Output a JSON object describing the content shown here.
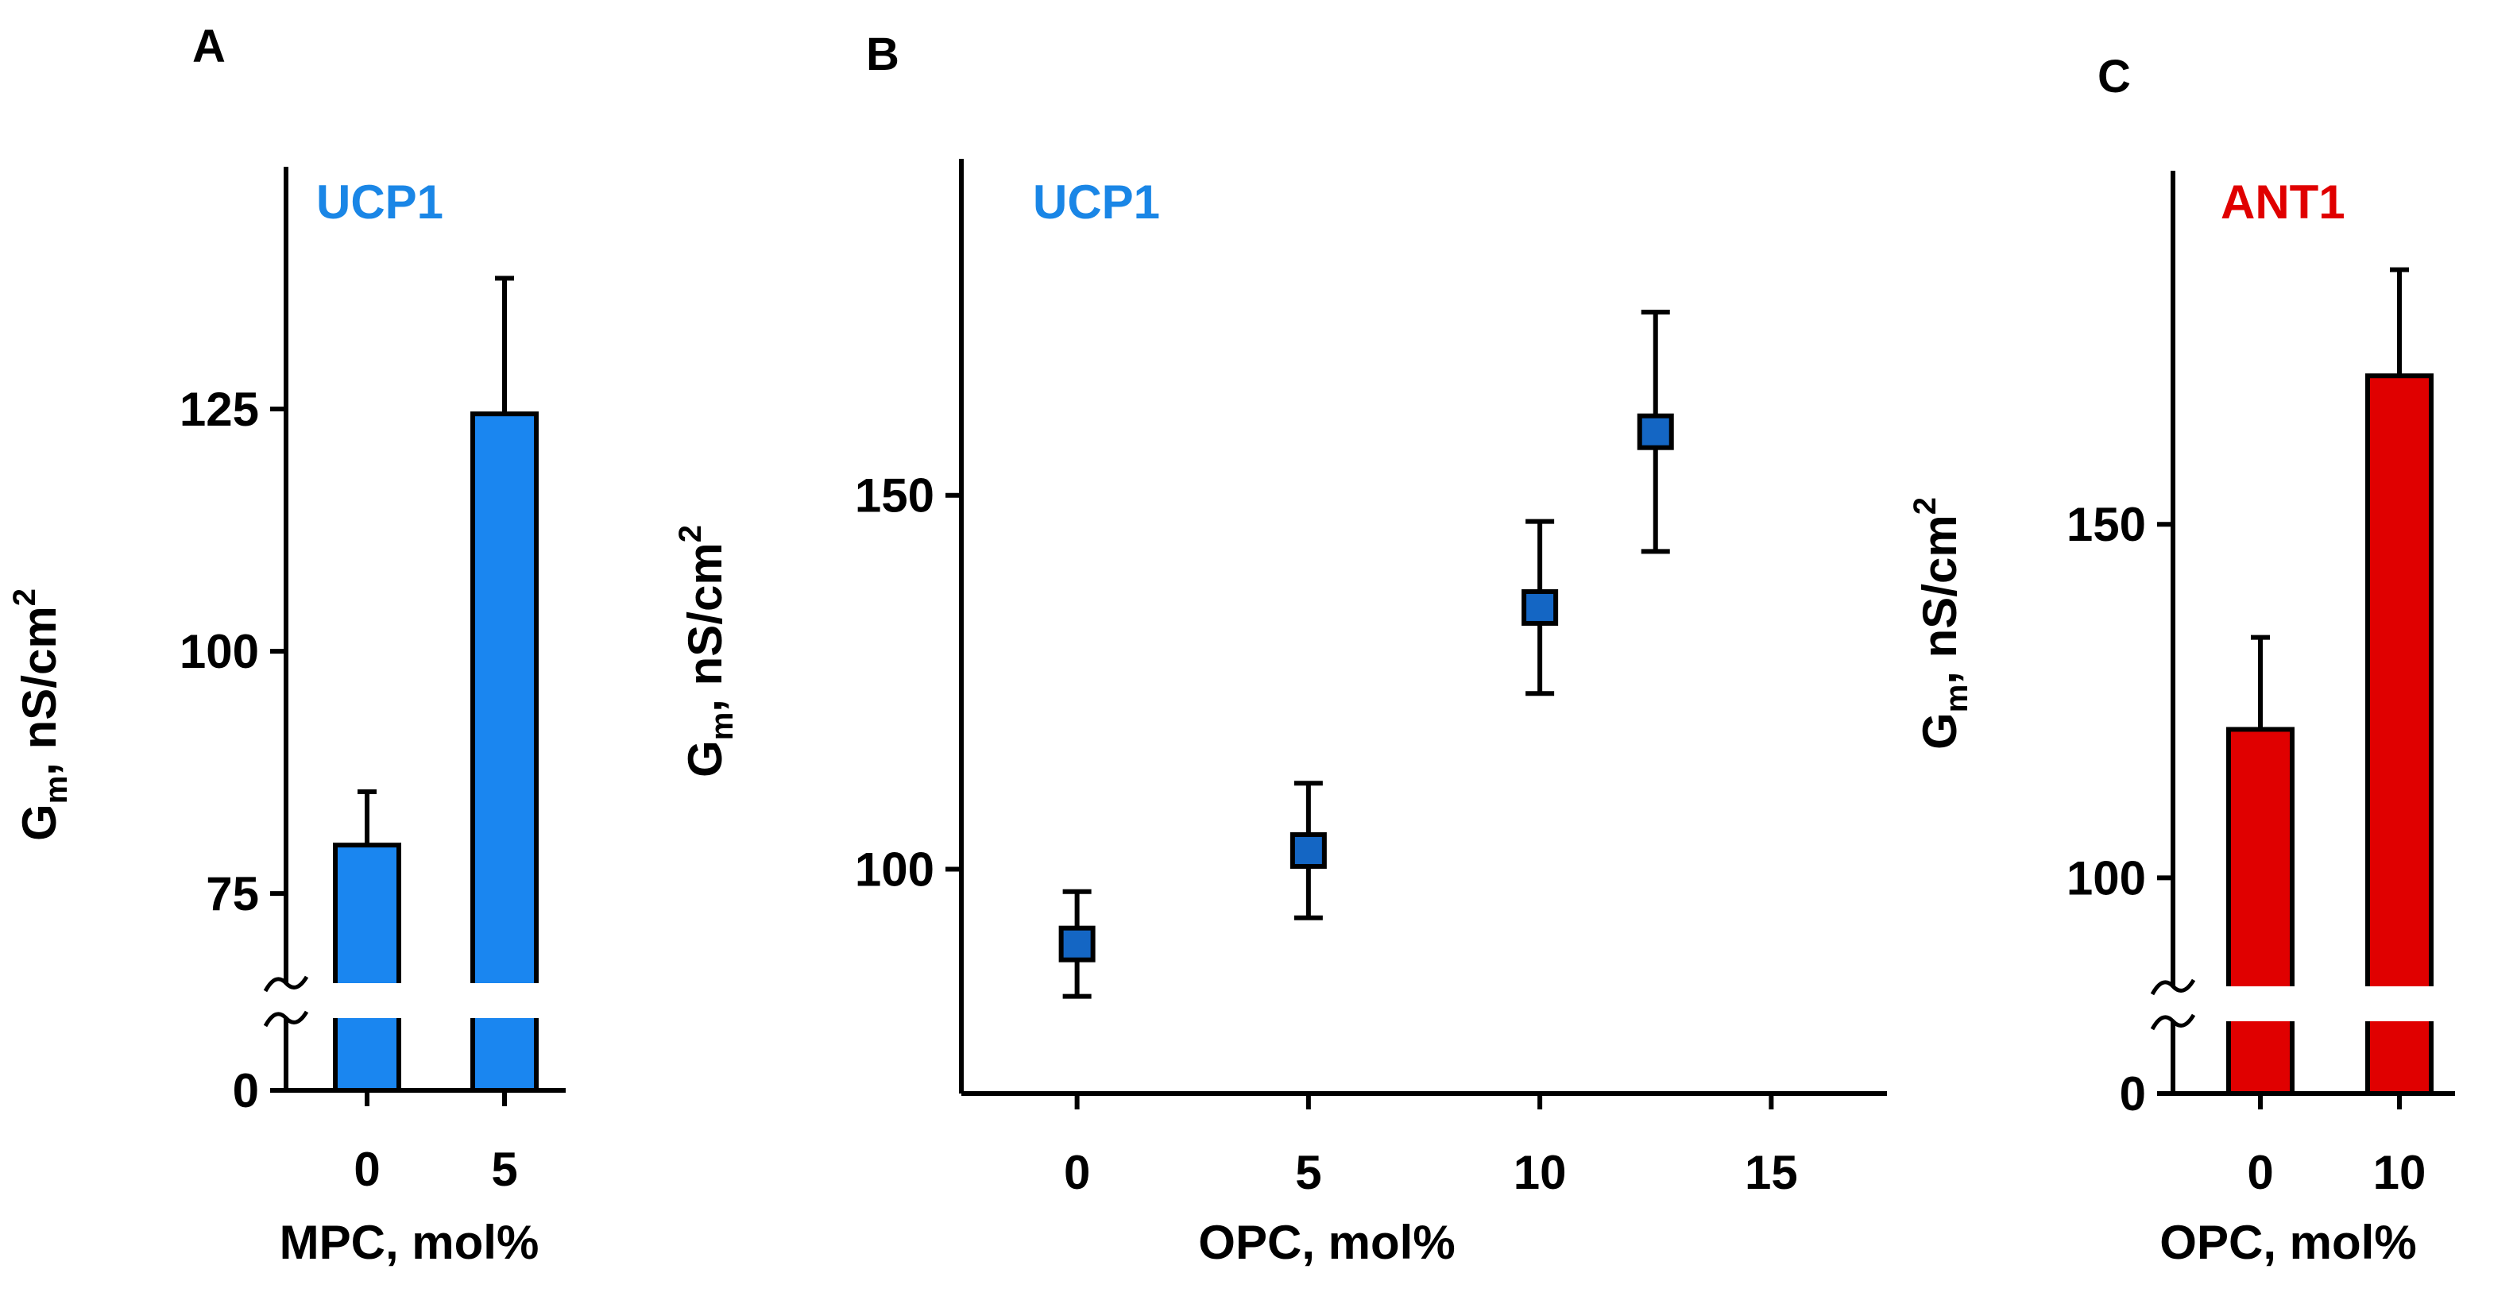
{
  "colors": {
    "ucp1_bar": "#1a86f0",
    "ucp1_marker": "#1466c4",
    "ucp1_label": "#1a86e6",
    "ant1_bar": "#e00000",
    "ant1_label": "#e00000",
    "axis": "#000000"
  },
  "chart_data": [
    {
      "panel": "A",
      "type": "bar",
      "protein_label": "UCP1",
      "xlabel": "MPC, mol%",
      "ylabel_main": "G",
      "ylabel_sub": "m",
      "ylabel_rest": ", nS/cm",
      "ylabel_sup": "2",
      "categories": [
        "0",
        "5"
      ],
      "values": [
        80,
        124.5
      ],
      "errors": [
        5.5,
        14
      ],
      "y_ticks": [
        "0",
        "75",
        "100",
        "125"
      ],
      "y_broken_axis": true,
      "y_lower_segment": [
        0,
        0
      ],
      "y_upper_segment": [
        66,
        150
      ],
      "color_key": "ucp1_bar"
    },
    {
      "panel": "B",
      "type": "scatter",
      "protein_label": "UCP1",
      "xlabel": "OPC, mol%",
      "ylabel_main": "G",
      "ylabel_sub": "m",
      "ylabel_rest": ", nS/cm",
      "ylabel_sup": "2",
      "x": [
        0,
        5,
        10,
        12.5
      ],
      "y": [
        90,
        102.5,
        135,
        158.5
      ],
      "errors": [
        7,
        9,
        11.5,
        16
      ],
      "x_ticks": [
        "0",
        "5",
        "10",
        "15"
      ],
      "y_ticks": [
        "100",
        "150"
      ],
      "xlim": [
        -2.5,
        17.5
      ],
      "ylim": [
        70,
        195
      ],
      "color_key": "ucp1_marker"
    },
    {
      "panel": "C",
      "type": "bar",
      "protein_label": "ANT1",
      "xlabel": "OPC, mol%",
      "ylabel_main": "G",
      "ylabel_sub": "m",
      "ylabel_rest": ", nS/cm",
      "ylabel_sup": "2",
      "categories": [
        "0",
        "10"
      ],
      "values": [
        121,
        171
      ],
      "errors": [
        13,
        15
      ],
      "y_ticks": [
        "0",
        "100",
        "150"
      ],
      "y_broken_axis": true,
      "y_lower_segment": [
        0,
        0
      ],
      "y_upper_segment": [
        85,
        200
      ],
      "color_key": "ant1_bar"
    }
  ]
}
